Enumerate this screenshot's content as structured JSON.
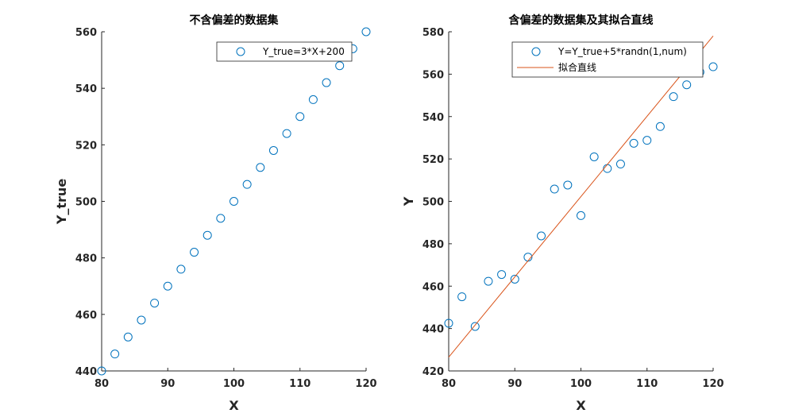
{
  "chart_data": [
    {
      "type": "scatter",
      "title": "不含偏差的数据集",
      "xlabel": "X",
      "ylabel": "Y_true",
      "xlim": [
        80,
        120
      ],
      "ylim": [
        440,
        560
      ],
      "xticks": [
        80,
        90,
        100,
        110,
        120
      ],
      "yticks": [
        440,
        460,
        480,
        500,
        520,
        540,
        560
      ],
      "grid": false,
      "legend_position": "top-right",
      "colors": {
        "marker": "#0072BD",
        "axis": "#262626"
      },
      "series": [
        {
          "name": "Y_true=3*X+200",
          "kind": "marker",
          "x": [
            80,
            82,
            84,
            86,
            88,
            90,
            92,
            94,
            96,
            98,
            100,
            102,
            104,
            106,
            108,
            110,
            112,
            114,
            116,
            118,
            120
          ],
          "y": [
            440,
            446,
            452,
            458,
            464,
            470,
            476,
            482,
            488,
            494,
            500,
            506,
            512,
            518,
            524,
            530,
            536,
            542,
            548,
            554,
            560
          ]
        }
      ]
    },
    {
      "type": "scatter",
      "title": "含偏差的数据集及其拟合直线",
      "xlabel": "X",
      "ylabel": "Y",
      "xlim": [
        80,
        120
      ],
      "ylim": [
        420,
        580
      ],
      "xticks": [
        80,
        90,
        100,
        110,
        120
      ],
      "yticks": [
        420,
        440,
        460,
        480,
        500,
        520,
        540,
        560,
        580
      ],
      "grid": false,
      "legend_position": "top-right",
      "colors": {
        "marker": "#0072BD",
        "line": "#D95319",
        "axis": "#262626"
      },
      "series": [
        {
          "name": "Y=Y_true+5*randn(1,num)",
          "kind": "marker",
          "x": [
            80,
            82,
            84,
            86,
            88,
            90,
            92,
            94,
            96,
            98,
            100,
            102,
            104,
            106,
            108,
            110,
            112,
            114,
            116,
            118,
            120
          ],
          "y": [
            442.5,
            455,
            441,
            462.3,
            465.5,
            463.3,
            473.7,
            483.7,
            505.8,
            507.7,
            493.3,
            521,
            515.5,
            517.6,
            527.4,
            528.8,
            535.3,
            549.4,
            555,
            561,
            563.5
          ]
        },
        {
          "name": "拟合直线",
          "kind": "line",
          "x": [
            80,
            120
          ],
          "y": [
            426.5,
            578
          ]
        }
      ]
    }
  ]
}
